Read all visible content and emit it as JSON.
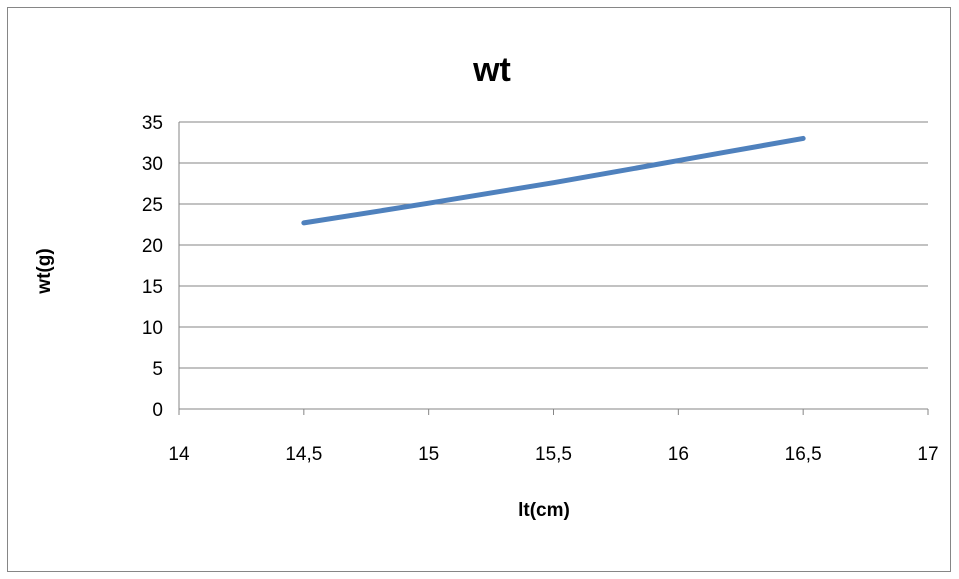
{
  "chart_data": {
    "type": "line",
    "title": "wt",
    "xlabel": "lt(cm)",
    "ylabel": "wt(g)",
    "xlim": [
      14,
      17
    ],
    "ylim": [
      0,
      35
    ],
    "x_ticks": [
      "14",
      "14,5",
      "15",
      "15,5",
      "16",
      "16,5",
      "17"
    ],
    "y_ticks": [
      "0",
      "5",
      "10",
      "15",
      "20",
      "25",
      "30",
      "35"
    ],
    "grid": "horizontal",
    "legend": "none",
    "series": [
      {
        "color": "#4F81BD",
        "x": [
          14.5,
          15.0,
          15.5,
          16.0,
          16.5
        ],
        "y": [
          22.7,
          25.1,
          27.6,
          30.3,
          33.0
        ]
      }
    ]
  }
}
